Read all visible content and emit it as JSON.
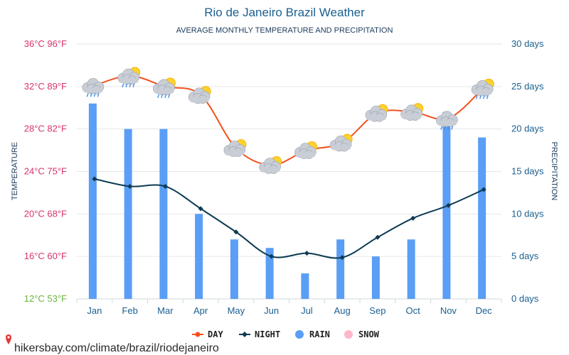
{
  "title": "Rio de Janeiro Brazil Weather",
  "subtitle": "AVERAGE MONTHLY TEMPERATURE AND PRECIPITATION",
  "left_axis_title": "TEMPERATURE",
  "right_axis_title": "PRECIPITATION",
  "watermark": "hikersbay.com/climate/brazil/riodejaneiro",
  "colors": {
    "day": "#f4511e",
    "night": "#0d3b53",
    "rain": "#5a9ef5",
    "snow": "#ffb6c8",
    "left_tick_pink": "#d6336c",
    "left_tick_green": "#6cb33f",
    "right_tick": "#1a5f8f",
    "grid": "#e6e6e6"
  },
  "legend": [
    {
      "key": "day",
      "label": "DAY",
      "icon": "line-dot-marker"
    },
    {
      "key": "night",
      "label": "NIGHT",
      "icon": "line-diamond-marker"
    },
    {
      "key": "rain",
      "label": "RAIN",
      "icon": "circle-marker"
    },
    {
      "key": "snow",
      "label": "SNOW",
      "icon": "circle-marker"
    }
  ],
  "chart_data": {
    "type": "line+bar",
    "categories": [
      "Jan",
      "Feb",
      "Mar",
      "Apr",
      "May",
      "Jun",
      "Jul",
      "Aug",
      "Sep",
      "Oct",
      "Nov",
      "Dec"
    ],
    "temp_axis": {
      "range_c": [
        12,
        36
      ],
      "ticks": [
        "12°C 53°F",
        "16°C 60°F",
        "20°C 68°F",
        "24°C 75°F",
        "28°C 82°F",
        "32°C 89°F",
        "36°C 96°F"
      ]
    },
    "precip_axis": {
      "range_days": [
        0,
        30
      ],
      "ticks": [
        "0 days",
        "5 days",
        "10 days",
        "15 days",
        "20 days",
        "25 days",
        "30 days"
      ]
    },
    "series": [
      {
        "name": "DAY",
        "unit": "°C",
        "values": [
          32.1,
          33.0,
          32.0,
          31.2,
          26.2,
          24.6,
          26.0,
          26.7,
          29.5,
          29.6,
          29.0,
          31.9
        ]
      },
      {
        "name": "NIGHT",
        "unit": "°C",
        "values": [
          23.3,
          22.6,
          22.6,
          20.5,
          18.3,
          16.0,
          16.3,
          15.9,
          17.8,
          19.6,
          20.8,
          22.3
        ]
      },
      {
        "name": "RAIN",
        "unit": "days",
        "values": [
          23,
          20,
          20,
          10,
          7,
          6,
          3,
          7,
          5,
          7,
          22,
          19
        ]
      },
      {
        "name": "SNOW",
        "unit": "days",
        "values": [
          0,
          0,
          0,
          0,
          0,
          0,
          0,
          0,
          0,
          0,
          0,
          0
        ]
      }
    ],
    "weather_icons": [
      "rain-cloud-icon",
      "sun-rain-cloud-icon",
      "sun-rain-cloud-icon",
      "sun-cloud-icon",
      "sun-cloud-icon",
      "sun-cloud-icon",
      "sun-cloud-icon",
      "sun-cloud-icon",
      "sun-cloud-icon",
      "sun-cloud-icon",
      "rain-cloud-icon",
      "sun-rain-cloud-icon"
    ],
    "grid": true,
    "legend_position": "bottom-center"
  }
}
